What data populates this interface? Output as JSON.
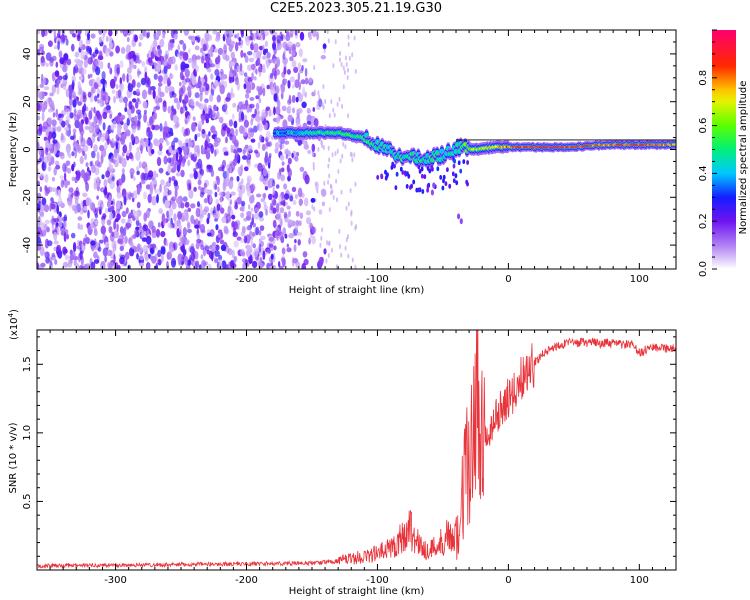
{
  "figure_title": "C2E5.2023.305.21.19.G30",
  "colors": {
    "snr_line": "#e8333a",
    "spectrum_scatter": "#7a2cf2",
    "spectrum_ridge_high": "#ff0000",
    "background": "#ffffff"
  },
  "chart_data": [
    {
      "type": "heatmap",
      "title": "",
      "xlabel": "Height of straight line (km)",
      "ylabel": "Frequency (Hz)",
      "xlim": [
        -360,
        128
      ],
      "ylim": [
        -50,
        50
      ],
      "x_ticks": [
        -300,
        -200,
        -100,
        0,
        100
      ],
      "y_ticks": [
        -40,
        -20,
        0,
        20,
        40
      ],
      "colormap": "rainbow (purple → blue → cyan → green → yellow → red → magenta)",
      "colorbar": {
        "label": "Normalized spectral amplitude",
        "range": [
          0.0,
          1.0
        ],
        "ticks": [
          "0.0",
          "0.2",
          "0.4",
          "0.6",
          "0.8"
        ]
      },
      "ridge": {
        "description": "dominant frequency track",
        "points": [
          {
            "x": -175,
            "y": 7,
            "amp": 0.35
          },
          {
            "x": -150,
            "y": 7,
            "amp": 0.45
          },
          {
            "x": -130,
            "y": 7,
            "amp": 0.55
          },
          {
            "x": -110,
            "y": 5,
            "amp": 0.5
          },
          {
            "x": -95,
            "y": 0,
            "amp": 0.45
          },
          {
            "x": -80,
            "y": -3,
            "amp": 0.5
          },
          {
            "x": -65,
            "y": -4,
            "amp": 0.5
          },
          {
            "x": -50,
            "y": -2,
            "amp": 0.45
          },
          {
            "x": -40,
            "y": 1,
            "amp": 0.5
          },
          {
            "x": -25,
            "y": 0,
            "amp": 0.65
          },
          {
            "x": -10,
            "y": 1,
            "amp": 0.7
          },
          {
            "x": 0,
            "y": 1,
            "amp": 0.8
          },
          {
            "x": 25,
            "y": 1,
            "amp": 0.9
          },
          {
            "x": 50,
            "y": 1,
            "amp": 0.85
          },
          {
            "x": 75,
            "y": 2,
            "amp": 0.8
          },
          {
            "x": 100,
            "y": 2,
            "amp": 0.85
          },
          {
            "x": 128,
            "y": 2,
            "amp": 0.8
          }
        ]
      },
      "noise_region": {
        "x_range": [
          -360,
          -150
        ],
        "amp": 0.2
      }
    },
    {
      "type": "line",
      "title": "",
      "xlabel": "Height of straight line (km)",
      "ylabel": "SNR (10 * v/v)",
      "y_scale_label": "(x10",
      "y_scale_exponent": "4",
      "y_scale_suffix": ")",
      "xlim": [
        -360,
        128
      ],
      "ylim": [
        0,
        17500
      ],
      "x_ticks": [
        -300,
        -200,
        -100,
        0,
        100
      ],
      "y_ticks": [
        {
          "value": 5000,
          "label": "0.5"
        },
        {
          "value": 10000,
          "label": "1.0"
        },
        {
          "value": 15000,
          "label": "1.5"
        }
      ],
      "series": [
        {
          "color": "#e8333a",
          "x": [
            -360,
            -300,
            -250,
            -200,
            -150,
            -130,
            -115,
            -100,
            -90,
            -80,
            -75,
            -70,
            -62,
            -55,
            -48,
            -40,
            -35,
            -30,
            -25,
            -22,
            -20,
            -15,
            -10,
            -5,
            0,
            5,
            10,
            20,
            30,
            40,
            60,
            80,
            95,
            100,
            110,
            120,
            128
          ],
          "y": [
            300,
            350,
            400,
            450,
            500,
            650,
            900,
            1200,
            1600,
            2500,
            3200,
            2000,
            1400,
            1700,
            2400,
            3000,
            6000,
            10000,
            11500,
            9000,
            10000,
            9500,
            11000,
            12000,
            12500,
            13000,
            14000,
            15200,
            16000,
            16500,
            16600,
            16500,
            16400,
            15800,
            16300,
            16200,
            16100
          ]
        }
      ]
    }
  ]
}
